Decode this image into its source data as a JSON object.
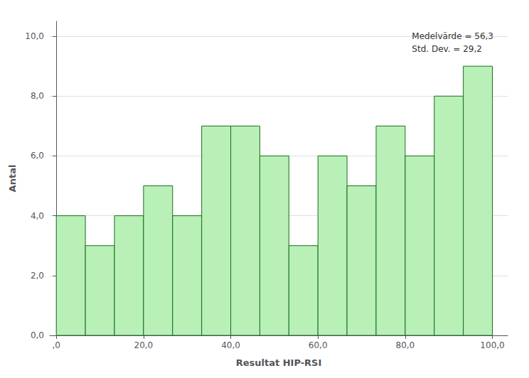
{
  "chart_data": {
    "type": "histogram",
    "bins": [
      0,
      6.666666666666667,
      13.333333333333334,
      20,
      26.666666666666668,
      33.333333333333336,
      40,
      46.666666666666664,
      53.333333333333336,
      60,
      66.66666666666667,
      73.33333333333333,
      80,
      86.66666666666667,
      93.33333333333333,
      100
    ],
    "values": [
      4,
      3,
      4,
      5,
      4,
      7,
      7,
      6,
      3,
      6,
      5,
      7,
      6,
      8,
      9
    ],
    "color": "#b8f0b8",
    "xlabel": "Resultat HIP-RSI",
    "ylabel": "Antal",
    "annotation": "Medelvärde = 56,3\nStd. Dev. = 29,2",
    "xlim": [
      -1.5,
      103.5
    ],
    "ylim": [
      0,
      10.5
    ],
    "xticks": [
      {
        "value": 0,
        "label": ",0"
      },
      {
        "value": 20,
        "label": "20,0"
      },
      {
        "value": 40,
        "label": "40,0"
      },
      {
        "value": 60,
        "label": "60,0"
      },
      {
        "value": 80,
        "label": "80,0"
      },
      {
        "value": 100,
        "label": "100,0"
      }
    ],
    "yticks": [
      {
        "value": 0,
        "label": "0,0"
      },
      {
        "value": 2,
        "label": "2,0"
      },
      {
        "value": 4,
        "label": "4,0"
      },
      {
        "value": 6,
        "label": "6,0"
      },
      {
        "value": 8,
        "label": "8,0"
      },
      {
        "value": 10,
        "label": "10,0"
      }
    ],
    "grid": true
  }
}
